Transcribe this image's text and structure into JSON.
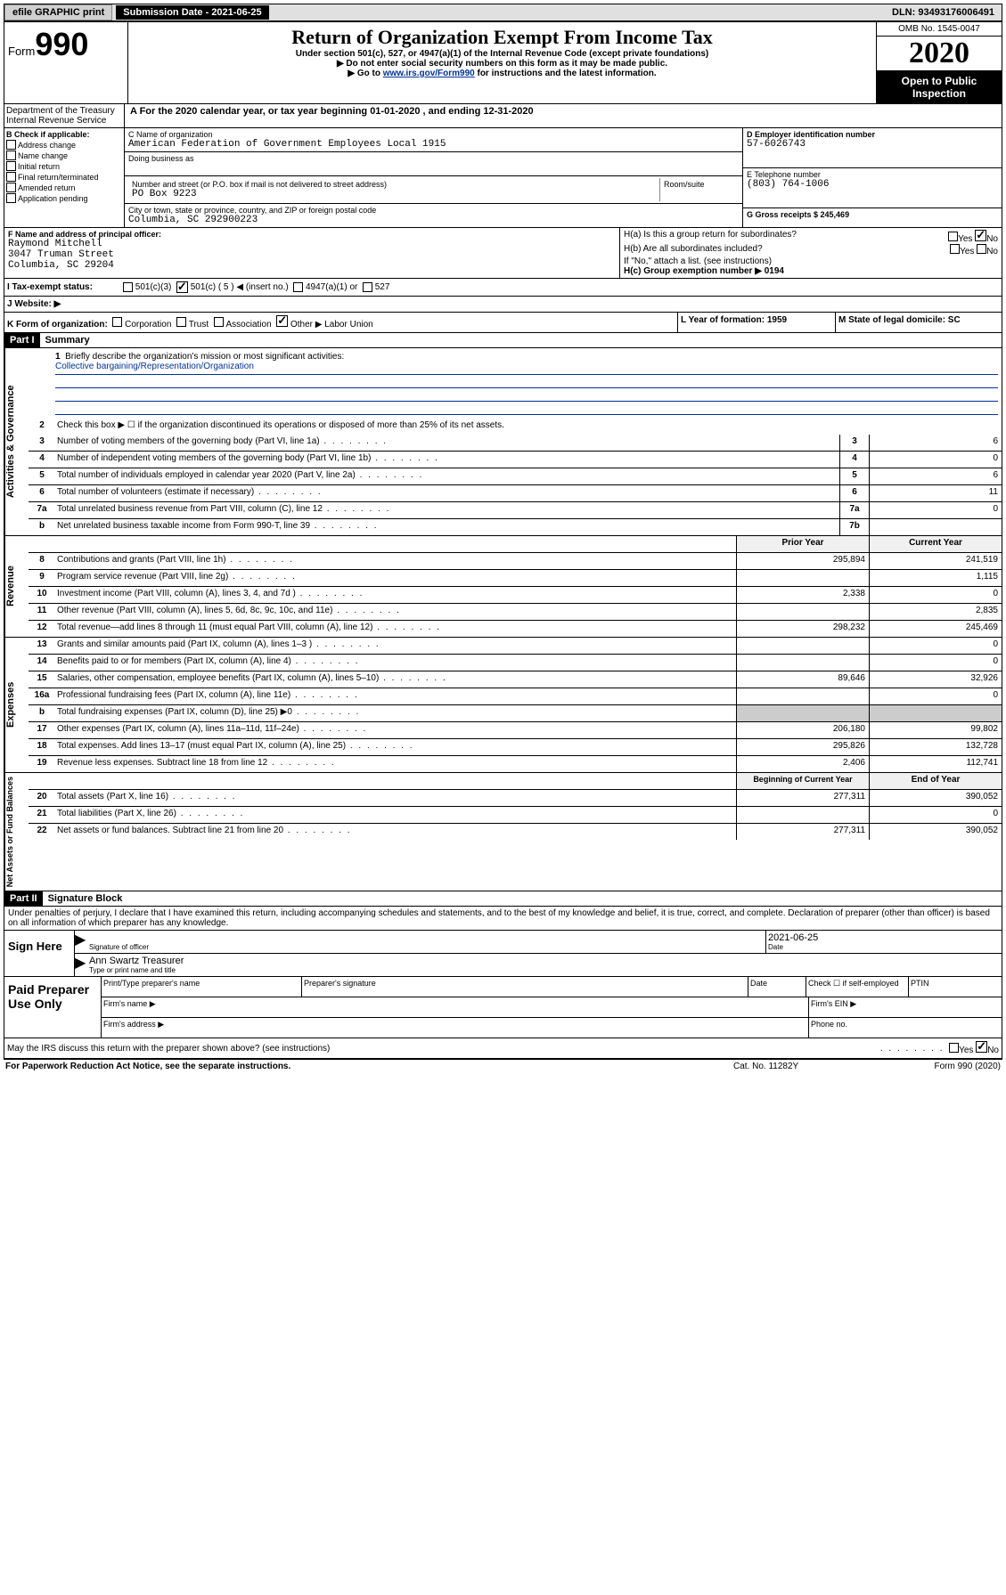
{
  "toolbar": {
    "efile": "efile GRAPHIC print",
    "submission_label": "Submission Date - 2021-06-25",
    "dln": "DLN: 93493176006491"
  },
  "header": {
    "form_word": "Form",
    "form_number": "990",
    "dept1": "Department of the Treasury",
    "dept2": "Internal Revenue Service",
    "title": "Return of Organization Exempt From Income Tax",
    "subtitle": "Under section 501(c), 527, or 4947(a)(1) of the Internal Revenue Code (except private foundations)",
    "instr1": "▶ Do not enter social security numbers on this form as it may be made public.",
    "instr2_pre": "▶ Go to ",
    "instr2_link": "www.irs.gov/Form990",
    "instr2_post": " for instructions and the latest information.",
    "omb": "OMB No. 1545-0047",
    "year": "2020",
    "open": "Open to Public Inspection"
  },
  "period": {
    "text_a": "A  For the 2020 calendar year, or tax year beginning 01-01-2020    , and ending 12-31-2020"
  },
  "box_b": {
    "label": "B Check if applicable:",
    "items": [
      "Address change",
      "Name change",
      "Initial return",
      "Final return/terminated",
      "Amended return",
      "Application pending"
    ]
  },
  "box_c": {
    "label": "C Name of organization",
    "name": "American Federation of Government Employees Local 1915",
    "dba_label": "Doing business as",
    "addr_label": "Number and street (or P.O. box if mail is not delivered to street address)",
    "room_label": "Room/suite",
    "addr": "PO Box 9223",
    "city_label": "City or town, state or province, country, and ZIP or foreign postal code",
    "city": "Columbia, SC  292900223"
  },
  "box_d": {
    "label": "D Employer identification number",
    "value": "57-6026743"
  },
  "box_e": {
    "label": "E Telephone number",
    "value": "(803) 764-1006"
  },
  "box_g": {
    "label": "G Gross receipts $ 245,469"
  },
  "box_f": {
    "label": "F  Name and address of principal officer:",
    "name": "Raymond Mitchell",
    "addr1": "3047 Truman Street",
    "addr2": "Columbia, SC  29204"
  },
  "box_h": {
    "ha": "H(a)  Is this a group return for subordinates?",
    "hb": "H(b)  Are all subordinates included?",
    "hb_note": "If \"No,\" attach a list. (see instructions)",
    "hc": "H(c)  Group exemption number ▶   0194",
    "yes": "Yes",
    "no": "No"
  },
  "box_i": {
    "label": "I   Tax-exempt status:",
    "opts": [
      "501(c)(3)",
      "501(c) ( 5 ) ◀ (insert no.)",
      "4947(a)(1) or",
      "527"
    ]
  },
  "box_j": {
    "label": "J   Website: ▶"
  },
  "box_k": {
    "label": "K Form of organization:",
    "opts": [
      "Corporation",
      "Trust",
      "Association",
      "Other ▶ Labor Union"
    ]
  },
  "box_l": {
    "label": "L Year of formation: 1959"
  },
  "box_m": {
    "label": "M State of legal domicile: SC"
  },
  "part1": {
    "header": "Part I",
    "title": "Summary",
    "line1_label": "Briefly describe the organization's mission or most significant activities:",
    "line1_value": "Collective bargaining/Representation/Organization",
    "line2": "Check this box ▶ ☐  if the organization discontinued its operations or disposed of more than 25% of its net assets.",
    "sections": {
      "governance": {
        "label": "Activities & Governance",
        "rows": [
          {
            "n": "3",
            "desc": "Number of voting members of the governing body (Part VI, line 1a)",
            "col": "3",
            "val": "6"
          },
          {
            "n": "4",
            "desc": "Number of independent voting members of the governing body (Part VI, line 1b)",
            "col": "4",
            "val": "0"
          },
          {
            "n": "5",
            "desc": "Total number of individuals employed in calendar year 2020 (Part V, line 2a)",
            "col": "5",
            "val": "6"
          },
          {
            "n": "6",
            "desc": "Total number of volunteers (estimate if necessary)",
            "col": "6",
            "val": "11"
          },
          {
            "n": "7a",
            "desc": "Total unrelated business revenue from Part VIII, column (C), line 12",
            "col": "7a",
            "val": "0"
          },
          {
            "n": "b",
            "desc": "Net unrelated business taxable income from Form 990-T, line 39",
            "col": "7b",
            "val": ""
          }
        ]
      },
      "revenue": {
        "label": "Revenue",
        "header_prior": "Prior Year",
        "header_current": "Current Year",
        "rows": [
          {
            "n": "8",
            "desc": "Contributions and grants (Part VIII, line 1h)",
            "prior": "295,894",
            "curr": "241,519"
          },
          {
            "n": "9",
            "desc": "Program service revenue (Part VIII, line 2g)",
            "prior": "",
            "curr": "1,115"
          },
          {
            "n": "10",
            "desc": "Investment income (Part VIII, column (A), lines 3, 4, and 7d )",
            "prior": "2,338",
            "curr": "0"
          },
          {
            "n": "11",
            "desc": "Other revenue (Part VIII, column (A), lines 5, 6d, 8c, 9c, 10c, and 11e)",
            "prior": "",
            "curr": "2,835"
          },
          {
            "n": "12",
            "desc": "Total revenue—add lines 8 through 11 (must equal Part VIII, column (A), line 12)",
            "prior": "298,232",
            "curr": "245,469"
          }
        ]
      },
      "expenses": {
        "label": "Expenses",
        "rows": [
          {
            "n": "13",
            "desc": "Grants and similar amounts paid (Part IX, column (A), lines 1–3 )",
            "prior": "",
            "curr": "0"
          },
          {
            "n": "14",
            "desc": "Benefits paid to or for members (Part IX, column (A), line 4)",
            "prior": "",
            "curr": "0"
          },
          {
            "n": "15",
            "desc": "Salaries, other compensation, employee benefits (Part IX, column (A), lines 5–10)",
            "prior": "89,646",
            "curr": "32,926"
          },
          {
            "n": "16a",
            "desc": "Professional fundraising fees (Part IX, column (A), line 11e)",
            "prior": "",
            "curr": "0"
          },
          {
            "n": "b",
            "desc": "Total fundraising expenses (Part IX, column (D), line 25) ▶0",
            "prior": "shaded",
            "curr": "shaded"
          },
          {
            "n": "17",
            "desc": "Other expenses (Part IX, column (A), lines 11a–11d, 11f–24e)",
            "prior": "206,180",
            "curr": "99,802"
          },
          {
            "n": "18",
            "desc": "Total expenses. Add lines 13–17 (must equal Part IX, column (A), line 25)",
            "prior": "295,826",
            "curr": "132,728"
          },
          {
            "n": "19",
            "desc": "Revenue less expenses. Subtract line 18 from line 12",
            "prior": "2,406",
            "curr": "112,741"
          }
        ]
      },
      "netassets": {
        "label": "Net Assets or Fund Balances",
        "header_prior": "Beginning of Current Year",
        "header_current": "End of Year",
        "rows": [
          {
            "n": "20",
            "desc": "Total assets (Part X, line 16)",
            "prior": "277,311",
            "curr": "390,052"
          },
          {
            "n": "21",
            "desc": "Total liabilities (Part X, line 26)",
            "prior": "",
            "curr": "0"
          },
          {
            "n": "22",
            "desc": "Net assets or fund balances. Subtract line 21 from line 20",
            "prior": "277,311",
            "curr": "390,052"
          }
        ]
      }
    }
  },
  "part2": {
    "header": "Part II",
    "title": "Signature Block",
    "perjury": "Under penalties of perjury, I declare that I have examined this return, including accompanying schedules and statements, and to the best of my knowledge and belief, it is true, correct, and complete. Declaration of preparer (other than officer) is based on all information of which preparer has any knowledge.",
    "sign_here": "Sign Here",
    "sig_officer": "Signature of officer",
    "sig_date": "2021-06-25",
    "date_label": "Date",
    "sig_name": "Ann Swartz  Treasurer",
    "sig_name_label": "Type or print name and title",
    "paid_prep": "Paid Preparer Use Only",
    "prep_name_label": "Print/Type preparer's name",
    "prep_sig_label": "Preparer's signature",
    "prep_date_label": "Date",
    "check_if": "Check ☐ if self-employed",
    "ptin": "PTIN",
    "firm_name": "Firm's name   ▶",
    "firm_ein": "Firm's EIN ▶",
    "firm_addr": "Firm's address ▶",
    "phone": "Phone no.",
    "discuss": "May the IRS discuss this return with the preparer shown above? (see instructions)"
  },
  "footer": {
    "left": "For Paperwork Reduction Act Notice, see the separate instructions.",
    "mid": "Cat. No. 11282Y",
    "right": "Form 990 (2020)"
  }
}
